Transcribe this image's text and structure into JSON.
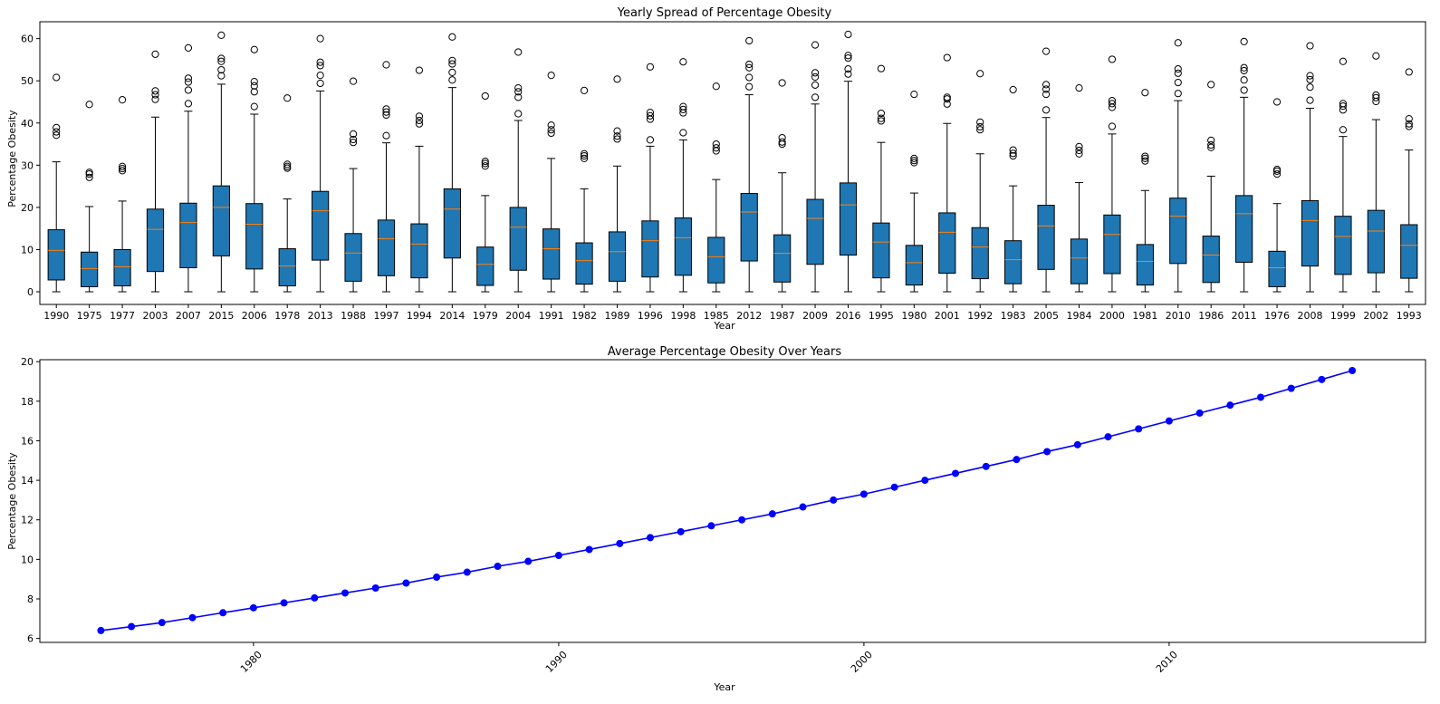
{
  "colors": {
    "box_fill": "#1f77b4",
    "median": "#ff7f0e",
    "line": "#0000ff"
  },
  "chart_data": [
    {
      "type": "box",
      "title": "Yearly Spread of Percentage Obesity",
      "xlabel": "Year",
      "ylabel": "Percentage Obesity",
      "ylim": [
        -3,
        64
      ],
      "yticks": [
        0,
        10,
        20,
        30,
        40,
        50,
        60
      ],
      "grid": false,
      "boxes": [
        {
          "label": "1990",
          "whislo": 0,
          "q1": 2.8,
          "median": 9.8,
          "q3": 14.7,
          "whishi": 30.8,
          "fliers": [
            37.1,
            37.9,
            38.9,
            50.8
          ]
        },
        {
          "label": "1975",
          "whislo": 0,
          "q1": 1.2,
          "median": 5.5,
          "q3": 9.4,
          "whishi": 20.2,
          "fliers": [
            27.1,
            27.9,
            28.3,
            44.4
          ]
        },
        {
          "label": "1977",
          "whislo": 0,
          "q1": 1.4,
          "median": 5.9,
          "q3": 10.0,
          "whishi": 21.5,
          "fliers": [
            28.7,
            29.2,
            29.7,
            45.5
          ]
        },
        {
          "label": "2003",
          "whislo": 0,
          "q1": 4.8,
          "median": 14.8,
          "q3": 19.6,
          "whishi": 41.4,
          "fliers": [
            45.6,
            46.7,
            47.6,
            56.3
          ]
        },
        {
          "label": "2007",
          "whislo": 0,
          "q1": 5.7,
          "median": 16.4,
          "q3": 21.0,
          "whishi": 42.8,
          "fliers": [
            44.6,
            47.8,
            49.7,
            50.6,
            57.8
          ]
        },
        {
          "label": "2015",
          "whislo": 0,
          "q1": 8.5,
          "median": 20.0,
          "q3": 25.1,
          "whishi": 49.2,
          "fliers": [
            51.2,
            52.6,
            54.6,
            55.3,
            60.8
          ]
        },
        {
          "label": "2006",
          "whislo": 0,
          "q1": 5.4,
          "median": 16.0,
          "q3": 20.9,
          "whishi": 42.1,
          "fliers": [
            43.9,
            47.4,
            48.8,
            49.8,
            57.4
          ]
        },
        {
          "label": "1978",
          "whislo": 0,
          "q1": 1.4,
          "median": 6.1,
          "q3": 10.2,
          "whishi": 22.0,
          "fliers": [
            29.3,
            29.7,
            30.2,
            45.9
          ]
        },
        {
          "label": "2013",
          "whislo": 0,
          "q1": 7.5,
          "median": 19.2,
          "q3": 23.8,
          "whishi": 47.6,
          "fliers": [
            49.4,
            51.3,
            53.6,
            54.4,
            60.0
          ]
        },
        {
          "label": "1988",
          "whislo": 0,
          "q1": 2.5,
          "median": 9.2,
          "q3": 13.8,
          "whishi": 29.2,
          "fliers": [
            35.4,
            36.1,
            37.4,
            49.9
          ]
        },
        {
          "label": "1997",
          "whislo": 0,
          "q1": 3.8,
          "median": 12.6,
          "q3": 17.0,
          "whishi": 35.3,
          "fliers": [
            37.0,
            41.9,
            42.6,
            43.3,
            53.8
          ]
        },
        {
          "label": "1994",
          "whislo": 0,
          "q1": 3.3,
          "median": 11.3,
          "q3": 16.1,
          "whishi": 34.5,
          "fliers": [
            39.8,
            40.6,
            41.6,
            52.5
          ]
        },
        {
          "label": "2014",
          "whislo": 0,
          "q1": 8.0,
          "median": 19.6,
          "q3": 24.4,
          "whishi": 48.4,
          "fliers": [
            50.2,
            52.0,
            54.0,
            54.8,
            60.4
          ]
        },
        {
          "label": "1979",
          "whislo": 0,
          "q1": 1.5,
          "median": 6.5,
          "q3": 10.6,
          "whishi": 22.8,
          "fliers": [
            29.8,
            30.4,
            30.9,
            46.4
          ]
        },
        {
          "label": "2004",
          "whislo": 0,
          "q1": 5.1,
          "median": 15.3,
          "q3": 20.0,
          "whishi": 40.6,
          "fliers": [
            42.2,
            46.1,
            47.4,
            48.3,
            56.8
          ]
        },
        {
          "label": "1991",
          "whislo": 0,
          "q1": 3.0,
          "median": 10.2,
          "q3": 14.9,
          "whishi": 31.6,
          "fliers": [
            37.6,
            38.4,
            39.5,
            51.3
          ]
        },
        {
          "label": "1982",
          "whislo": 0,
          "q1": 1.8,
          "median": 7.4,
          "q3": 11.6,
          "whishi": 24.4,
          "fliers": [
            31.6,
            32.2,
            32.7,
            47.7
          ]
        },
        {
          "label": "1989",
          "whislo": 0,
          "q1": 2.5,
          "median": 9.5,
          "q3": 14.2,
          "whishi": 29.8,
          "fliers": [
            36.2,
            36.9,
            38.1,
            50.4
          ]
        },
        {
          "label": "1996",
          "whislo": 0,
          "q1": 3.5,
          "median": 12.1,
          "q3": 16.8,
          "whishi": 34.5,
          "fliers": [
            36.0,
            40.9,
            41.7,
            42.5,
            53.3
          ]
        },
        {
          "label": "1998",
          "whislo": 0,
          "q1": 3.9,
          "median": 12.8,
          "q3": 17.5,
          "whishi": 36.0,
          "fliers": [
            37.7,
            42.4,
            43.2,
            43.9,
            54.5
          ]
        },
        {
          "label": "1985",
          "whislo": 0,
          "q1": 2.1,
          "median": 8.3,
          "q3": 12.9,
          "whishi": 26.6,
          "fliers": [
            33.4,
            34.1,
            35.0,
            48.7
          ]
        },
        {
          "label": "2012",
          "whislo": 0,
          "q1": 7.3,
          "median": 18.9,
          "q3": 23.3,
          "whishi": 46.7,
          "fliers": [
            48.6,
            50.8,
            53.1,
            53.9,
            59.5
          ]
        },
        {
          "label": "1987",
          "whislo": 0,
          "q1": 2.3,
          "median": 9.1,
          "q3": 13.5,
          "whishi": 28.2,
          "fliers": [
            35.0,
            35.5,
            36.5,
            49.5
          ]
        },
        {
          "label": "2009",
          "whislo": 0,
          "q1": 6.5,
          "median": 17.4,
          "q3": 21.9,
          "whishi": 44.5,
          "fliers": [
            46.1,
            49.0,
            50.9,
            51.9,
            58.5
          ]
        },
        {
          "label": "2016",
          "whislo": 0,
          "q1": 8.7,
          "median": 20.6,
          "q3": 25.8,
          "whishi": 49.9,
          "fliers": [
            51.6,
            52.8,
            55.4,
            56.0,
            61.0
          ]
        },
        {
          "label": "1995",
          "whislo": 0,
          "q1": 3.3,
          "median": 11.8,
          "q3": 16.3,
          "whishi": 35.4,
          "fliers": [
            40.5,
            41.1,
            42.3,
            52.9
          ]
        },
        {
          "label": "1980",
          "whislo": 0,
          "q1": 1.6,
          "median": 6.9,
          "q3": 11.0,
          "whishi": 23.4,
          "fliers": [
            30.6,
            31.1,
            31.6,
            46.8
          ]
        },
        {
          "label": "2001",
          "whislo": 0,
          "q1": 4.4,
          "median": 14.1,
          "q3": 18.7,
          "whishi": 39.9,
          "fliers": [
            44.5,
            45.7,
            46.1,
            55.5
          ]
        },
        {
          "label": "1992",
          "whislo": 0,
          "q1": 3.1,
          "median": 10.6,
          "q3": 15.2,
          "whishi": 32.7,
          "fliers": [
            38.4,
            39.1,
            40.2,
            51.7
          ]
        },
        {
          "label": "1983",
          "whislo": 0,
          "q1": 1.9,
          "median": 7.6,
          "q3": 12.1,
          "whishi": 25.1,
          "fliers": [
            32.2,
            32.8,
            33.6,
            47.9
          ]
        },
        {
          "label": "2005",
          "whislo": 0,
          "q1": 5.3,
          "median": 15.6,
          "q3": 20.5,
          "whishi": 41.3,
          "fliers": [
            43.1,
            46.8,
            48.0,
            49.1,
            57.0
          ]
        },
        {
          "label": "1984",
          "whislo": 0,
          "q1": 1.9,
          "median": 8.0,
          "q3": 12.5,
          "whishi": 25.9,
          "fliers": [
            32.7,
            33.5,
            34.4,
            48.3
          ]
        },
        {
          "label": "2000",
          "whislo": 0,
          "q1": 4.3,
          "median": 13.6,
          "q3": 18.2,
          "whishi": 37.4,
          "fliers": [
            39.2,
            43.7,
            44.6,
            45.3,
            55.1
          ]
        },
        {
          "label": "1981",
          "whislo": 0,
          "q1": 1.6,
          "median": 7.2,
          "q3": 11.2,
          "whishi": 24.0,
          "fliers": [
            31.0,
            31.6,
            32.1,
            47.2
          ]
        },
        {
          "label": "2010",
          "whislo": 0,
          "q1": 6.7,
          "median": 17.9,
          "q3": 22.2,
          "whishi": 45.3,
          "fliers": [
            47.0,
            49.6,
            51.8,
            52.8,
            59.0
          ]
        },
        {
          "label": "1986",
          "whislo": 0,
          "q1": 2.2,
          "median": 8.7,
          "q3": 13.2,
          "whishi": 27.4,
          "fliers": [
            34.2,
            34.8,
            35.9,
            49.1
          ]
        },
        {
          "label": "2011",
          "whislo": 0,
          "q1": 7.0,
          "median": 18.5,
          "q3": 22.8,
          "whishi": 46.1,
          "fliers": [
            47.8,
            50.2,
            52.4,
            53.1,
            59.3
          ]
        },
        {
          "label": "1976",
          "whislo": 0,
          "q1": 1.2,
          "median": 5.7,
          "q3": 9.6,
          "whishi": 20.9,
          "fliers": [
            27.9,
            28.6,
            29.0,
            45.0
          ]
        },
        {
          "label": "2008",
          "whislo": 0,
          "q1": 6.1,
          "median": 16.9,
          "q3": 21.6,
          "whishi": 43.5,
          "fliers": [
            45.4,
            48.5,
            50.3,
            51.2,
            58.3
          ]
        },
        {
          "label": "1999",
          "whislo": 0,
          "q1": 4.1,
          "median": 13.1,
          "q3": 17.9,
          "whishi": 36.8,
          "fliers": [
            38.4,
            43.1,
            44.0,
            44.6,
            54.6
          ]
        },
        {
          "label": "2002",
          "whislo": 0,
          "q1": 4.5,
          "median": 14.4,
          "q3": 19.3,
          "whishi": 40.8,
          "fliers": [
            45.1,
            46.0,
            46.6,
            55.9
          ]
        },
        {
          "label": "1993",
          "whislo": 0,
          "q1": 3.2,
          "median": 11.0,
          "q3": 15.9,
          "whishi": 33.6,
          "fliers": [
            39.2,
            39.8,
            41.0,
            52.1
          ]
        }
      ]
    },
    {
      "type": "line",
      "title": "Average Percentage Obesity Over Years",
      "xlabel": "Year",
      "ylabel": "Percentage Obesity",
      "xlim": [
        1973.0,
        2018.4
      ],
      "ylim": [
        5.8,
        20.1
      ],
      "xticks": [
        1980,
        1990,
        2000,
        2010
      ],
      "yticks": [
        6,
        8,
        10,
        12,
        14,
        16,
        18,
        20
      ],
      "grid": false,
      "x": [
        1975,
        1976,
        1977,
        1978,
        1979,
        1980,
        1981,
        1982,
        1983,
        1984,
        1985,
        1986,
        1987,
        1988,
        1989,
        1990,
        1991,
        1992,
        1993,
        1994,
        1995,
        1996,
        1997,
        1998,
        1999,
        2000,
        2001,
        2002,
        2003,
        2004,
        2005,
        2006,
        2007,
        2008,
        2009,
        2010,
        2011,
        2012,
        2013,
        2014,
        2015,
        2016
      ],
      "y": [
        6.4,
        6.6,
        6.8,
        7.05,
        7.3,
        7.55,
        7.8,
        8.05,
        8.3,
        8.55,
        8.8,
        9.1,
        9.35,
        9.65,
        9.9,
        10.2,
        10.5,
        10.8,
        11.1,
        11.4,
        11.7,
        12.0,
        12.3,
        12.65,
        13.0,
        13.3,
        13.65,
        14.0,
        14.35,
        14.7,
        15.05,
        15.45,
        15.8,
        16.2,
        16.6,
        17.0,
        17.4,
        17.8,
        18.2,
        18.65,
        19.1,
        19.55
      ]
    }
  ]
}
